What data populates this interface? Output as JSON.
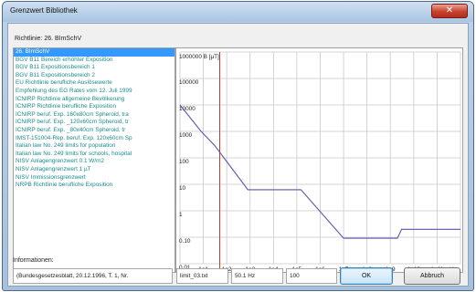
{
  "window": {
    "title": "Grenzwert Bibliothek",
    "close_label": "✕"
  },
  "richtlinie": {
    "label": "Richtlinie:",
    "value": "26. BImSchV"
  },
  "list": {
    "items": [
      {
        "label": "26. BImSchV",
        "selected": true
      },
      {
        "label": "BGV B11 Bereich erhöhter Exposition",
        "selected": false
      },
      {
        "label": "BGV B11 Expositionsbereich 1",
        "selected": false
      },
      {
        "label": "BGV B11 Expositionsbereich 2",
        "selected": false
      },
      {
        "label": "EU Richtlinie berufliche Auslösewerte",
        "selected": false
      },
      {
        "label": "Empfehlung des EG Rates vom 12. Juli 1999",
        "selected": false
      },
      {
        "label": "ICNIRP Richtlinie allgemeine Bevölkerung",
        "selected": false
      },
      {
        "label": "ICNIRP Richtlinie berufliche Exposition",
        "selected": false
      },
      {
        "label": "ICNIRP beruf. Exp. 160x80cm Spheroid, tra",
        "selected": false
      },
      {
        "label": "ICNIRP beruf. Exp. _120x60cm Spheroid, tr",
        "selected": false
      },
      {
        "label": "ICNIRP beruf. Exp. _80x40cm Spheroid, tr",
        "selected": false
      },
      {
        "label": "IMST-151004-Rep. beruf. Exp. 120x60cm Sp",
        "selected": false
      },
      {
        "label": "Italian law No. 249 limits for population",
        "selected": false
      },
      {
        "label": "Italian law No. 249 limits for schools, hospital",
        "selected": false
      },
      {
        "label": "NISV Anlagengrenzwert 0.1 W/m2",
        "selected": false
      },
      {
        "label": "NISV Anlagengrenzwert 1 µT",
        "selected": false
      },
      {
        "label": "NISV Immissionsgrenzwert",
        "selected": false
      },
      {
        "label": "NRPB Richtlinie berufliche Exposition",
        "selected": false
      }
    ]
  },
  "info": {
    "label": "Informationen:",
    "source": "(Bundesgesetzesblatt, 20.12.1996, T. 1, Nr.",
    "file": "limit_03.txt",
    "frequency": "50.1 Hz",
    "value": "100"
  },
  "buttons": {
    "ok": "OK",
    "cancel": "Abbruch"
  },
  "colors": {
    "curve": "#5a55a8",
    "marker": "#c0392b",
    "grid": "#c8c8c8",
    "list_text": "#1a8c8c",
    "selection": "#3399ff"
  },
  "chart_data": {
    "type": "line",
    "title": "",
    "xlabel": "Hz",
    "ylabel": "",
    "y_unit": "[µT]",
    "x_scale": "log",
    "y_scale": "log",
    "xlim": [
      1,
      1000000000000
    ],
    "ylim": [
      0.01,
      1000000
    ],
    "x_tick_labels": [
      "1e1",
      "1e2",
      "1e3",
      "1e4",
      "1e5",
      "1e6",
      "1e7",
      "1e8",
      "1e9",
      "1e10",
      "1e11",
      "Hz"
    ],
    "y_tick_labels": [
      "1000000 B [µT]",
      "100000",
      "10000",
      "1000",
      "100",
      "10",
      "1",
      "0.10",
      "0.01"
    ],
    "grid": true,
    "marker_frequency": 50.1,
    "series": [
      {
        "x": [
          1,
          8,
          30,
          800,
          150000,
          10000000,
          60000000,
          2000000000,
          3000000000,
          300000000000,
          1000000000000
        ],
        "y": [
          10000,
          1000,
          300,
          6.25,
          6.25,
          0.092,
          0.092,
          0.092,
          0.2,
          0.2,
          0.2
        ]
      }
    ]
  }
}
